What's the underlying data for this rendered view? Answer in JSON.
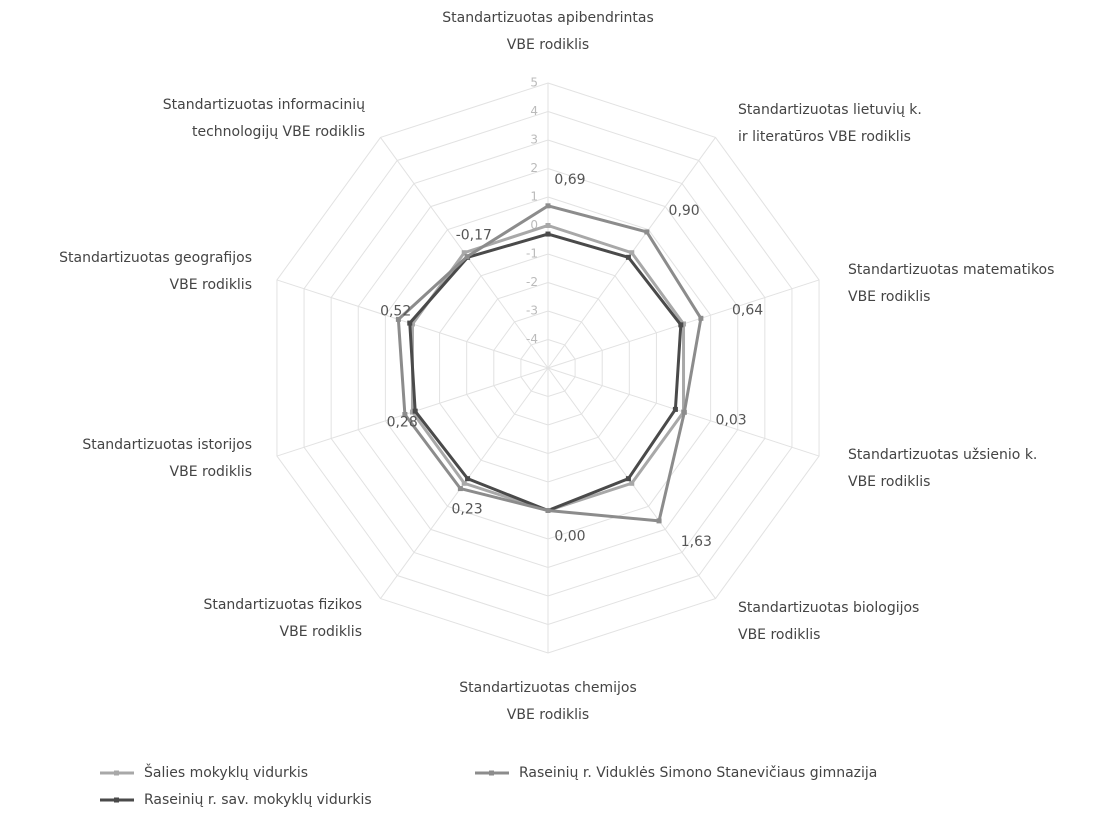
{
  "chart_data": {
    "type": "radar",
    "categories": [
      [
        "Standartizuotas apibendrintas",
        "VBE rodiklis"
      ],
      [
        "Standartizuotas lietuvių k.",
        "ir literatūros VBE rodiklis"
      ],
      [
        "Standartizuotas matematikos",
        "VBE rodiklis"
      ],
      [
        "Standartizuotas užsienio k.",
        "VBE rodiklis"
      ],
      [
        "Standartizuotas biologijos",
        "VBE rodiklis"
      ],
      [
        "Standartizuotas chemijos",
        "VBE rodiklis"
      ],
      [
        "Standartizuotas fizikos",
        "VBE rodiklis"
      ],
      [
        "Standartizuotas istorijos",
        "VBE rodiklis"
      ],
      [
        "Standartizuotas geografijos",
        "VBE rodiklis"
      ],
      [
        "Standartizuotas informacinių",
        "technologijų VBE rodiklis"
      ]
    ],
    "rlim": [
      -5,
      5
    ],
    "rticks": [
      -4,
      -3,
      -2,
      -1,
      0,
      1,
      2,
      3,
      4,
      5
    ],
    "grid": true,
    "series": [
      {
        "name": "Šalies mokyklų vidurkis",
        "color": "#a8a8a8",
        "values": [
          0,
          0,
          0,
          0,
          0,
          0,
          0,
          0,
          0,
          0
        ]
      },
      {
        "name": "Raseinių r. sav. mokyklų vidurkis",
        "color": "#4a4a4a",
        "values": [
          -0.3,
          -0.2,
          -0.1,
          -0.3,
          -0.2,
          0,
          -0.2,
          -0.1,
          0.1,
          -0.2
        ]
      },
      {
        "name": "Raseinių r. Viduklės Simono Stanevičiaus gimnazija",
        "color": "#8c8c8c",
        "values": [
          0.69,
          0.9,
          0.64,
          0.03,
          1.63,
          0,
          0.23,
          0.28,
          0.52,
          -0.17
        ],
        "value_labels": [
          "0,69",
          "0,90",
          "0,64",
          "0,03",
          "1,63",
          "0,00",
          "0,23",
          "0,28",
          "0,52",
          "-0,17"
        ]
      }
    ],
    "legend": "bottom"
  }
}
